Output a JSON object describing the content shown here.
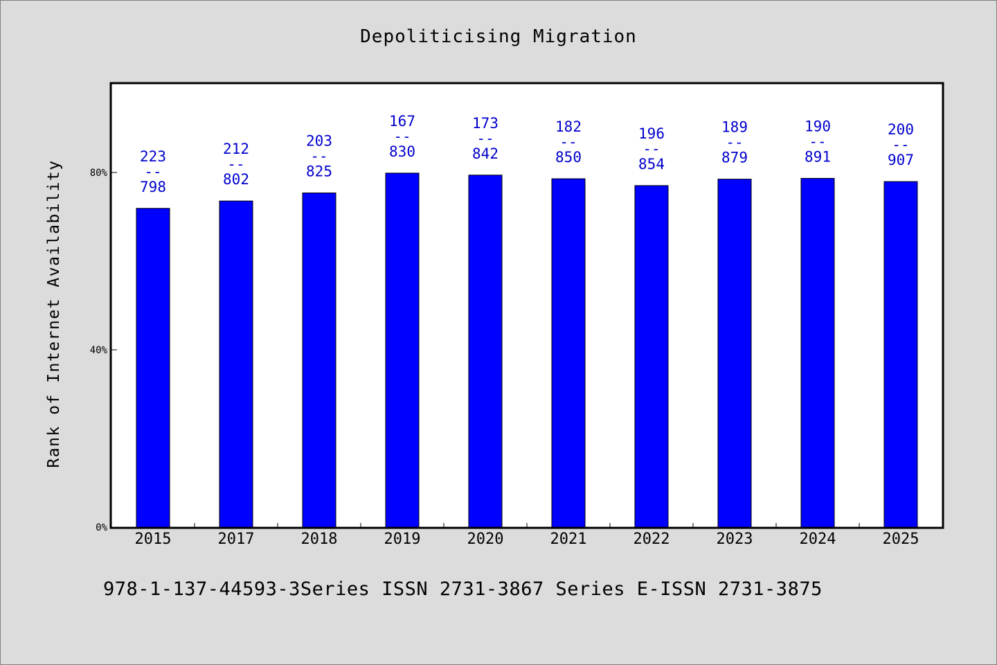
{
  "chart_data": {
    "type": "bar",
    "title": "Depoliticising Migration",
    "xlabel": "",
    "ylabel": "Rank of Internet Availability",
    "categories": [
      "2015",
      "2017",
      "2018",
      "2019",
      "2020",
      "2021",
      "2022",
      "2023",
      "2024",
      "2025"
    ],
    "values": [
      0.7191,
      0.7357,
      0.7539,
      0.7986,
      0.7941,
      0.7859,
      0.7705,
      0.785,
      0.7868,
      0.7795
    ],
    "data_labels": [
      [
        "223",
        "--",
        "798"
      ],
      [
        "212",
        "--",
        "802"
      ],
      [
        "203",
        "--",
        "825"
      ],
      [
        "167",
        "--",
        "830"
      ],
      [
        "173",
        "--",
        "842"
      ],
      [
        "182",
        "--",
        "850"
      ],
      [
        "196",
        "--",
        "854"
      ],
      [
        "189",
        "--",
        "879"
      ],
      [
        "190",
        "--",
        "891"
      ],
      [
        "200",
        "--",
        "907"
      ]
    ],
    "ylim": [
      0,
      1.0
    ],
    "yticks": [
      0,
      0.4,
      0.8
    ],
    "ytick_labels": [
      "0%",
      "40%",
      "80%"
    ],
    "grid": false,
    "colors": {
      "bar": "#0000ff",
      "label": "#0000cd",
      "plot_bg": "#ffffff",
      "page_bg": "#dcdcdc"
    }
  },
  "footer": "978-1-137-44593-3Series ISSN 2731-3867 Series E-ISSN 2731-3875"
}
